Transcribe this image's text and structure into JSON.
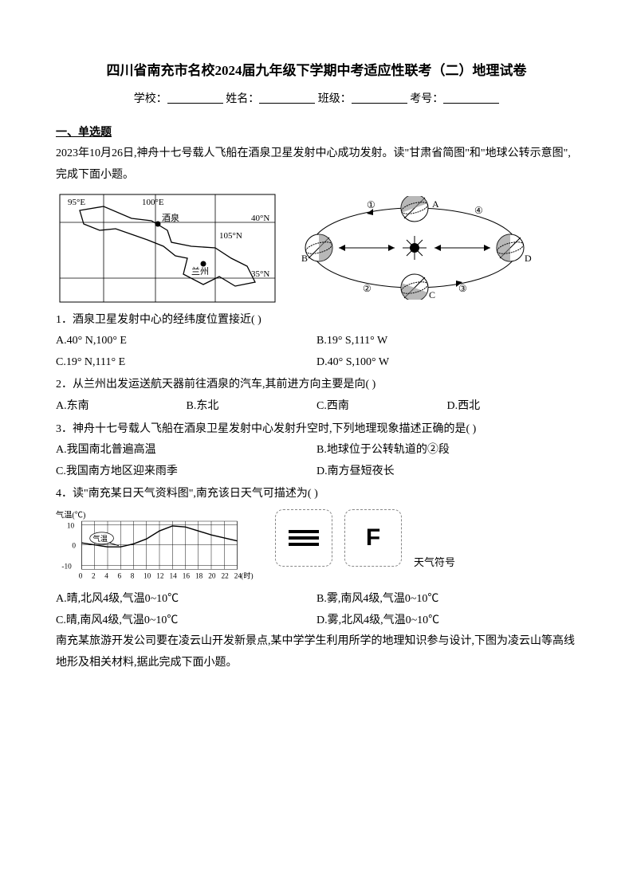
{
  "title": "四川省南充市名校2024届九年级下学期中考适应性联考（二）地理试卷",
  "form": {
    "school": "学校：",
    "name": "姓名：",
    "class": "班级：",
    "exam_no": "考号："
  },
  "section1": "一、单选题",
  "intro1": "2023年10月26日,神舟十七号载人飞船在酒泉卫星发射中心成功发射。读\"甘肃省简图\"和\"地球公转示意图\",完成下面小题。",
  "map": {
    "labels": {
      "l95": "95°E",
      "l100": "100°E",
      "l105": "105°N",
      "l40": "40°N",
      "l35": "35°N",
      "jq": "酒泉",
      "lz": "兰州"
    }
  },
  "orbit": {
    "labels": {
      "a": "A",
      "b": "B",
      "c": "C",
      "d": "D",
      "n1": "①",
      "n2": "②",
      "n3": "③",
      "n4": "④"
    }
  },
  "q1": {
    "text": "1．酒泉卫星发射中心的经纬度位置接近(    )",
    "a": "A.40° N,100° E",
    "b": "B.19° S,111° W",
    "c": "C.19° N,111° E",
    "d": "D.40° S,100° W"
  },
  "q2": {
    "text": "2．从兰州出发运送航天器前往酒泉的汽车,其前进方向主要是向(    )",
    "a": "A.东南",
    "b": "B.东北",
    "c": "C.西南",
    "d": "D.西北"
  },
  "q3": {
    "text": "3．神舟十七号载人飞船在酒泉卫星发射中心发射升空时,下列地理现象描述正确的是(    )",
    "a": "A.我国南北普遍高温",
    "b": "B.地球位于公转轨道的②段",
    "c": "C.我国南方地区迎来雨季",
    "d": "D.南方昼短夜长"
  },
  "q4": {
    "text": "4．读\"南充某日天气资料图\",南充该日天气可描述为(    )",
    "chart": {
      "ylabel": "气温(℃)",
      "yticks": [
        -10,
        0,
        10
      ],
      "xticks": [
        0,
        2,
        4,
        6,
        8,
        10,
        12,
        14,
        16,
        18,
        20,
        22,
        24
      ],
      "xunit": "(时)",
      "anno": "气温",
      "series": [
        [
          0,
          1
        ],
        [
          2,
          0
        ],
        [
          4,
          -1
        ],
        [
          6,
          -1
        ],
        [
          8,
          0.5
        ],
        [
          10,
          3
        ],
        [
          12,
          7
        ],
        [
          14,
          9.5
        ],
        [
          16,
          9
        ],
        [
          18,
          7
        ],
        [
          20,
          5
        ],
        [
          22,
          3.5
        ],
        [
          24,
          2
        ]
      ]
    },
    "wlabel": "天气符号",
    "a": "A.晴,北风4级,气温0~10℃",
    "b": "B.雾,南风4级,气温0~10℃",
    "c": "C.晴,南风4级,气温0~10℃",
    "d": "D.雾,北风4级,气温0~10℃"
  },
  "intro2": "南充某旅游开发公司要在凌云山开发新景点,某中学学生利用所学的地理知识参与设计,下图为凌云山等高线地形及相关材料,据此完成下面小题。"
}
